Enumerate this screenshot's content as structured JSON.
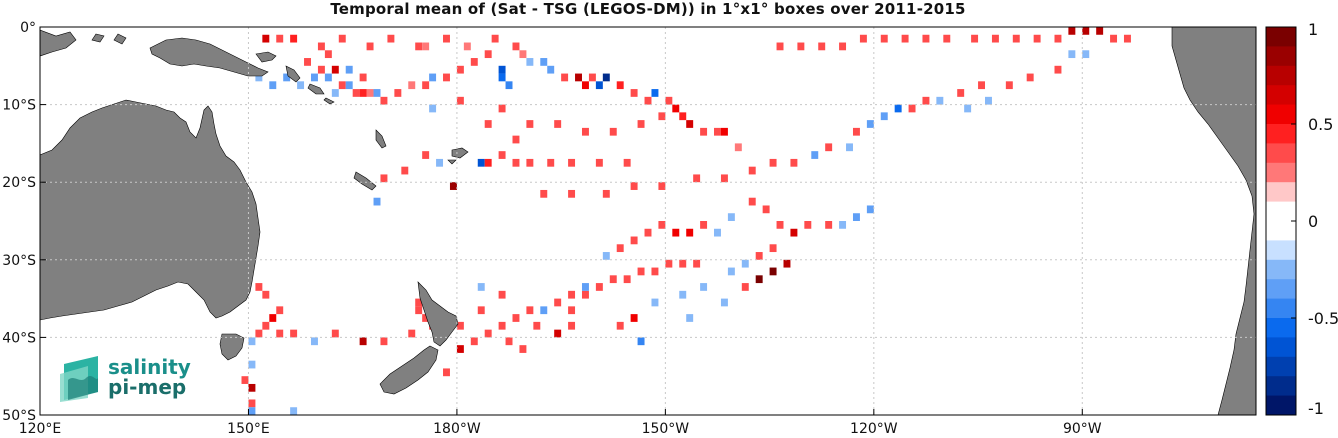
{
  "title": "Temporal mean of (Sat - TSG (LEGOS-DM)) in 1°x1° boxes over 2011-2015",
  "axes": {
    "lon_range": [
      120,
      295
    ],
    "lat_range": [
      -50,
      0
    ],
    "x_ticks": [
      {
        "lon": 120,
        "label": "120°E"
      },
      {
        "lon": 150,
        "label": "150°E"
      },
      {
        "lon": 180,
        "label": "180°W"
      },
      {
        "lon": 210,
        "label": "150°W"
      },
      {
        "lon": 240,
        "label": "120°W"
      },
      {
        "lon": 270,
        "label": "90°W"
      }
    ],
    "y_ticks": [
      {
        "lat": 0,
        "label": "0°"
      },
      {
        "lat": -10,
        "label": "10°S"
      },
      {
        "lat": -20,
        "label": "20°S"
      },
      {
        "lat": -30,
        "label": "30°S"
      },
      {
        "lat": -40,
        "label": "40°S"
      },
      {
        "lat": -50,
        "label": "50°S"
      }
    ],
    "grid": true
  },
  "colorbar": {
    "range": [
      -1,
      1
    ],
    "levels": 20,
    "tick_labels": [
      "1",
      "0.5",
      "0",
      "-0.5",
      "-1"
    ],
    "tick_values": [
      1,
      0.5,
      0,
      -0.5,
      -1
    ]
  },
  "colors": {
    "land": "#808080",
    "coast": "#000000",
    "grid": "#c8c8c8"
  },
  "logo": {
    "line1": "salinity",
    "line2": "pi-mep"
  },
  "chart_data": {
    "type": "heatmap",
    "cell_size_deg": 1,
    "cells": [
      {
        "lon": 152,
        "lat": -1,
        "v": 0.6
      },
      {
        "lon": 156,
        "lat": -1,
        "v": 0.4
      },
      {
        "lon": 160,
        "lat": -2,
        "v": 0.3
      },
      {
        "lon": 163,
        "lat": -1,
        "v": 0.3
      },
      {
        "lon": 167,
        "lat": -2,
        "v": 0.35
      },
      {
        "lon": 170,
        "lat": -1,
        "v": 0.3
      },
      {
        "lon": 174,
        "lat": -2,
        "v": 0.3
      },
      {
        "lon": 175,
        "lat": -2,
        "v": 0.2
      },
      {
        "lon": 178,
        "lat": -1,
        "v": 0.3
      },
      {
        "lon": 181,
        "lat": -2,
        "v": 0.25
      },
      {
        "lon": 185,
        "lat": -1,
        "v": 0.3
      },
      {
        "lon": 188,
        "lat": -2,
        "v": 0.3
      },
      {
        "lon": 189,
        "lat": -3,
        "v": 0.2
      },
      {
        "lon": 190,
        "lat": -4,
        "v": -0.2
      },
      {
        "lon": 192,
        "lat": -4,
        "v": -0.3
      },
      {
        "lon": 193,
        "lat": -5,
        "v": -0.3
      },
      {
        "lon": 195,
        "lat": -6,
        "v": 0.3
      },
      {
        "lon": 197,
        "lat": -6,
        "v": 0.7
      },
      {
        "lon": 198,
        "lat": -7,
        "v": 0.5
      },
      {
        "lon": 199,
        "lat": -6,
        "v": 0.3
      },
      {
        "lon": 200,
        "lat": -7,
        "v": -0.6
      },
      {
        "lon": 201,
        "lat": -6,
        "v": -0.8
      },
      {
        "lon": 203,
        "lat": -7,
        "v": 0.4
      },
      {
        "lon": 205,
        "lat": -8,
        "v": 0.3
      },
      {
        "lon": 207,
        "lat": -9,
        "v": 0.3
      },
      {
        "lon": 208,
        "lat": -8,
        "v": -0.5
      },
      {
        "lon": 210,
        "lat": -9,
        "v": 0.3
      },
      {
        "lon": 211,
        "lat": -10,
        "v": 0.5
      },
      {
        "lon": 212,
        "lat": -11,
        "v": 0.4
      },
      {
        "lon": 213,
        "lat": -12,
        "v": 0.6
      },
      {
        "lon": 215,
        "lat": -13,
        "v": 0.3
      },
      {
        "lon": 217,
        "lat": -13,
        "v": 0.3
      },
      {
        "lon": 218,
        "lat": -13,
        "v": 0.5
      },
      {
        "lon": 220,
        "lat": -15,
        "v": 0.2
      },
      {
        "lon": 186,
        "lat": -5,
        "v": -0.6
      },
      {
        "lon": 186,
        "lat": -6,
        "v": -0.5
      },
      {
        "lon": 187,
        "lat": -7,
        "v": -0.4
      },
      {
        "lon": 184,
        "lat": -3,
        "v": 0.3
      },
      {
        "lon": 182,
        "lat": -4,
        "v": 0.3
      },
      {
        "lon": 180,
        "lat": -5,
        "v": 0.3
      },
      {
        "lon": 178,
        "lat": -6,
        "v": 0.3
      },
      {
        "lon": 176,
        "lat": -6,
        "v": -0.3
      },
      {
        "lon": 175,
        "lat": -7,
        "v": 0.3
      },
      {
        "lon": 173,
        "lat": -7,
        "v": 0.25
      },
      {
        "lon": 171,
        "lat": -8,
        "v": 0.3
      },
      {
        "lon": 169,
        "lat": -9,
        "v": 0.3
      },
      {
        "lon": 167,
        "lat": -8,
        "v": 0.2
      },
      {
        "lon": 165,
        "lat": -8,
        "v": 0.3
      },
      {
        "lon": 163,
        "lat": -7,
        "v": 0.35
      },
      {
        "lon": 161,
        "lat": -6,
        "v": -0.3
      },
      {
        "lon": 159,
        "lat": -6,
        "v": -0.3
      },
      {
        "lon": 157,
        "lat": -7,
        "v": -0.2
      },
      {
        "lon": 155,
        "lat": -6,
        "v": -0.3
      },
      {
        "lon": 153,
        "lat": -7,
        "v": -0.35
      },
      {
        "lon": 151,
        "lat": -6,
        "v": -0.25
      },
      {
        "lon": 158,
        "lat": -4,
        "v": 0.3
      },
      {
        "lon": 160,
        "lat": -5,
        "v": 0.3
      },
      {
        "lon": 162,
        "lat": -5,
        "v": 0.6
      },
      {
        "lon": 166,
        "lat": -8,
        "v": 0.4
      },
      {
        "lon": 168,
        "lat": -8,
        "v": -0.3
      },
      {
        "lon": 176,
        "lat": -10,
        "v": -0.2
      },
      {
        "lon": 180,
        "lat": -9,
        "v": 0.3
      },
      {
        "lon": 186,
        "lat": -10,
        "v": 0.3
      },
      {
        "lon": 190,
        "lat": -12,
        "v": 0.3
      },
      {
        "lon": 194,
        "lat": -12,
        "v": 0.3
      },
      {
        "lon": 198,
        "lat": -13,
        "v": 0.3
      },
      {
        "lon": 202,
        "lat": -13,
        "v": 0.3
      },
      {
        "lon": 206,
        "lat": -12,
        "v": 0.3
      },
      {
        "lon": 209,
        "lat": -11,
        "v": 0.3
      },
      {
        "lon": 183,
        "lat": -17,
        "v": -0.6
      },
      {
        "lon": 184,
        "lat": -17,
        "v": 0.4
      },
      {
        "lon": 186,
        "lat": -16,
        "v": 0.3
      },
      {
        "lon": 188,
        "lat": -17,
        "v": 0.3
      },
      {
        "lon": 190,
        "lat": -17,
        "v": 0.3
      },
      {
        "lon": 193,
        "lat": -17,
        "v": 0.3
      },
      {
        "lon": 196,
        "lat": -17,
        "v": 0.3
      },
      {
        "lon": 200,
        "lat": -17,
        "v": 0.3
      },
      {
        "lon": 204,
        "lat": -17,
        "v": 0.3
      },
      {
        "lon": 179,
        "lat": -20,
        "v": 0.8
      },
      {
        "lon": 177,
        "lat": -17,
        "v": -0.2
      },
      {
        "lon": 175,
        "lat": -16,
        "v": 0.3
      },
      {
        "lon": 172,
        "lat": -18,
        "v": 0.3
      },
      {
        "lon": 169,
        "lat": -19,
        "v": 0.3
      },
      {
        "lon": 168,
        "lat": -22,
        "v": -0.3
      },
      {
        "lon": 226,
        "lat": -2,
        "v": 0.3
      },
      {
        "lon": 229,
        "lat": -2,
        "v": 0.3
      },
      {
        "lon": 232,
        "lat": -2,
        "v": 0.3
      },
      {
        "lon": 235,
        "lat": -2,
        "v": 0.3
      },
      {
        "lon": 238,
        "lat": -1,
        "v": 0.3
      },
      {
        "lon": 241,
        "lat": -1,
        "v": 0.3
      },
      {
        "lon": 244,
        "lat": -1,
        "v": 0.3
      },
      {
        "lon": 247,
        "lat": -1,
        "v": 0.3
      },
      {
        "lon": 250,
        "lat": -1,
        "v": 0.3
      },
      {
        "lon": 254,
        "lat": -1,
        "v": 0.3
      },
      {
        "lon": 257,
        "lat": -1,
        "v": 0.3
      },
      {
        "lon": 260,
        "lat": -1,
        "v": 0.3
      },
      {
        "lon": 263,
        "lat": -1,
        "v": 0.3
      },
      {
        "lon": 266,
        "lat": -1,
        "v": 0.3
      },
      {
        "lon": 268,
        "lat": 0,
        "v": 0.7
      },
      {
        "lon": 270,
        "lat": 0,
        "v": 0.7
      },
      {
        "lon": 272,
        "lat": 0,
        "v": 0.7
      },
      {
        "lon": 274,
        "lat": -1,
        "v": 0.3
      },
      {
        "lon": 276,
        "lat": -1,
        "v": 0.3
      },
      {
        "lon": 270,
        "lat": -3,
        "v": -0.2
      },
      {
        "lon": 268,
        "lat": -3,
        "v": -0.2
      },
      {
        "lon": 266,
        "lat": -5,
        "v": 0.3
      },
      {
        "lon": 262,
        "lat": -6,
        "v": 0.3
      },
      {
        "lon": 259,
        "lat": -7,
        "v": 0.3
      },
      {
        "lon": 255,
        "lat": -7,
        "v": 0.3
      },
      {
        "lon": 252,
        "lat": -8,
        "v": 0.3
      },
      {
        "lon": 249,
        "lat": -9,
        "v": -0.2
      },
      {
        "lon": 247,
        "lat": -9,
        "v": 0.3
      },
      {
        "lon": 245,
        "lat": -10,
        "v": 0.3
      },
      {
        "lon": 243,
        "lat": -10,
        "v": -0.5
      },
      {
        "lon": 241,
        "lat": -11,
        "v": -0.3
      },
      {
        "lon": 239,
        "lat": -12,
        "v": -0.3
      },
      {
        "lon": 237,
        "lat": -13,
        "v": 0.3
      },
      {
        "lon": 256,
        "lat": -9,
        "v": -0.2
      },
      {
        "lon": 253,
        "lat": -10,
        "v": -0.2
      },
      {
        "lon": 236,
        "lat": -15,
        "v": -0.2
      },
      {
        "lon": 233,
        "lat": -15,
        "v": 0.3
      },
      {
        "lon": 231,
        "lat": -16,
        "v": -0.3
      },
      {
        "lon": 228,
        "lat": -17,
        "v": 0.3
      },
      {
        "lon": 225,
        "lat": -17,
        "v": 0.3
      },
      {
        "lon": 222,
        "lat": -18,
        "v": 0.3
      },
      {
        "lon": 218,
        "lat": -19,
        "v": 0.3
      },
      {
        "lon": 214,
        "lat": -19,
        "v": 0.3
      },
      {
        "lon": 209,
        "lat": -20,
        "v": 0.3
      },
      {
        "lon": 205,
        "lat": -20,
        "v": 0.3
      },
      {
        "lon": 201,
        "lat": -21,
        "v": 0.3
      },
      {
        "lon": 196,
        "lat": -21,
        "v": 0.3
      },
      {
        "lon": 192,
        "lat": -21,
        "v": 0.3
      },
      {
        "lon": 239,
        "lat": -23,
        "v": -0.3
      },
      {
        "lon": 237,
        "lat": -24,
        "v": -0.3
      },
      {
        "lon": 235,
        "lat": -25,
        "v": -0.2
      },
      {
        "lon": 233,
        "lat": -25,
        "v": 0.3
      },
      {
        "lon": 230,
        "lat": -25,
        "v": 0.3
      },
      {
        "lon": 228,
        "lat": -26,
        "v": 0.6
      },
      {
        "lon": 226,
        "lat": -25,
        "v": 0.3
      },
      {
        "lon": 224,
        "lat": -23,
        "v": 0.3
      },
      {
        "lon": 222,
        "lat": -22,
        "v": 0.3
      },
      {
        "lon": 219,
        "lat": -24,
        "v": -0.2
      },
      {
        "lon": 217,
        "lat": -26,
        "v": -0.2
      },
      {
        "lon": 215,
        "lat": -25,
        "v": 0.3
      },
      {
        "lon": 213,
        "lat": -26,
        "v": 0.5
      },
      {
        "lon": 211,
        "lat": -26,
        "v": 0.5
      },
      {
        "lon": 209,
        "lat": -25,
        "v": 0.3
      },
      {
        "lon": 207,
        "lat": -26,
        "v": 0.3
      },
      {
        "lon": 205,
        "lat": -27,
        "v": 0.3
      },
      {
        "lon": 203,
        "lat": -28,
        "v": 0.3
      },
      {
        "lon": 201,
        "lat": -29,
        "v": -0.2
      },
      {
        "lon": 225,
        "lat": -28,
        "v": 0.3
      },
      {
        "lon": 223,
        "lat": -29,
        "v": 0.3
      },
      {
        "lon": 221,
        "lat": -30,
        "v": -0.2
      },
      {
        "lon": 219,
        "lat": -31,
        "v": -0.2
      },
      {
        "lon": 227,
        "lat": -30,
        "v": 0.7
      },
      {
        "lon": 225,
        "lat": -31,
        "v": 0.9
      },
      {
        "lon": 223,
        "lat": -32,
        "v": 0.9
      },
      {
        "lon": 221,
        "lat": -33,
        "v": 0.3
      },
      {
        "lon": 214,
        "lat": -30,
        "v": 0.3
      },
      {
        "lon": 212,
        "lat": -30,
        "v": 0.3
      },
      {
        "lon": 210,
        "lat": -30,
        "v": 0.3
      },
      {
        "lon": 208,
        "lat": -31,
        "v": 0.3
      },
      {
        "lon": 206,
        "lat": -31,
        "v": 0.3
      },
      {
        "lon": 204,
        "lat": -32,
        "v": 0.3
      },
      {
        "lon": 202,
        "lat": -32,
        "v": 0.3
      },
      {
        "lon": 200,
        "lat": -33,
        "v": 0.3
      },
      {
        "lon": 198,
        "lat": -34,
        "v": 0.3
      },
      {
        "lon": 196,
        "lat": -34,
        "v": 0.3
      },
      {
        "lon": 194,
        "lat": -35,
        "v": 0.3
      },
      {
        "lon": 192,
        "lat": -36,
        "v": -0.3
      },
      {
        "lon": 190,
        "lat": -36,
        "v": 0.3
      },
      {
        "lon": 188,
        "lat": -37,
        "v": 0.3
      },
      {
        "lon": 186,
        "lat": -38,
        "v": 0.3
      },
      {
        "lon": 184,
        "lat": -39,
        "v": 0.3
      },
      {
        "lon": 182,
        "lat": -40,
        "v": 0.3
      },
      {
        "lon": 180,
        "lat": -41,
        "v": 0.6
      },
      {
        "lon": 208,
        "lat": -35,
        "v": -0.2
      },
      {
        "lon": 205,
        "lat": -37,
        "v": 0.5
      },
      {
        "lon": 203,
        "lat": -38,
        "v": 0.3
      },
      {
        "lon": 206,
        "lat": -40,
        "v": -0.4
      },
      {
        "lon": 196,
        "lat": -38,
        "v": 0.3
      },
      {
        "lon": 194,
        "lat": -39,
        "v": 0.6
      },
      {
        "lon": 191,
        "lat": -38,
        "v": 0.3
      },
      {
        "lon": 187,
        "lat": -40,
        "v": 0.3
      },
      {
        "lon": 189,
        "lat": -41,
        "v": 0.3
      },
      {
        "lon": 212,
        "lat": -34,
        "v": -0.2
      },
      {
        "lon": 215,
        "lat": -33,
        "v": -0.2
      },
      {
        "lon": 218,
        "lat": -35,
        "v": -0.2
      },
      {
        "lon": 213,
        "lat": -37,
        "v": -0.2
      },
      {
        "lon": 198,
        "lat": -33,
        "v": -0.3
      },
      {
        "lon": 196,
        "lat": -36,
        "v": 0.3
      },
      {
        "lon": 186,
        "lat": -34,
        "v": 0.3
      },
      {
        "lon": 183,
        "lat": -33,
        "v": -0.2
      },
      {
        "lon": 174,
        "lat": -35,
        "v": 0.3
      },
      {
        "lon": 174,
        "lat": -36,
        "v": 0.3
      },
      {
        "lon": 175,
        "lat": -37,
        "v": 0.3
      },
      {
        "lon": 176,
        "lat": -38,
        "v": 0.3
      },
      {
        "lon": 180,
        "lat": -38,
        "v": 0.3
      },
      {
        "lon": 183,
        "lat": -36,
        "v": 0.3
      },
      {
        "lon": 176,
        "lat": -42,
        "v": 0.3
      },
      {
        "lon": 178,
        "lat": -44,
        "v": 0.3
      },
      {
        "lon": 173,
        "lat": -39,
        "v": 0.3
      },
      {
        "lon": 154,
        "lat": -36,
        "v": 0.3
      },
      {
        "lon": 153,
        "lat": -37,
        "v": 0.5
      },
      {
        "lon": 152,
        "lat": -38,
        "v": 0.3
      },
      {
        "lon": 151,
        "lat": -39,
        "v": 0.3
      },
      {
        "lon": 150,
        "lat": -40,
        "v": -0.2
      },
      {
        "lon": 150,
        "lat": -43,
        "v": -0.2
      },
      {
        "lon": 149,
        "lat": -45,
        "v": 0.3
      },
      {
        "lon": 150,
        "lat": -46,
        "v": 0.7
      },
      {
        "lon": 150,
        "lat": -48,
        "v": 0.3
      },
      {
        "lon": 150,
        "lat": -49,
        "v": -0.3
      },
      {
        "lon": 154,
        "lat": -39,
        "v": 0.3
      },
      {
        "lon": 156,
        "lat": -39,
        "v": 0.3
      },
      {
        "lon": 159,
        "lat": -40,
        "v": -0.2
      },
      {
        "lon": 162,
        "lat": -39,
        "v": 0.3
      },
      {
        "lon": 166,
        "lat": -40,
        "v": 0.7
      },
      {
        "lon": 169,
        "lat": -40,
        "v": 0.3
      },
      {
        "lon": 156,
        "lat": -49,
        "v": -0.2
      },
      {
        "lon": 147,
        "lat": -40,
        "v": 0.3
      },
      {
        "lon": 151,
        "lat": -33,
        "v": 0.3
      },
      {
        "lon": 152,
        "lat": -34,
        "v": 0.3
      },
      {
        "lon": 161,
        "lat": -3,
        "v": 0.3
      },
      {
        "lon": 164,
        "lat": -5,
        "v": -0.3
      },
      {
        "lon": 166,
        "lat": -6,
        "v": 0.3
      },
      {
        "lon": 164,
        "lat": -7,
        "v": -0.3
      },
      {
        "lon": 162,
        "lat": -8,
        "v": -0.2
      },
      {
        "lon": 154,
        "lat": -1,
        "v": 0.3
      },
      {
        "lon": 184,
        "lat": -12,
        "v": 0.3
      },
      {
        "lon": 188,
        "lat": -14,
        "v": 0.3
      }
    ]
  }
}
